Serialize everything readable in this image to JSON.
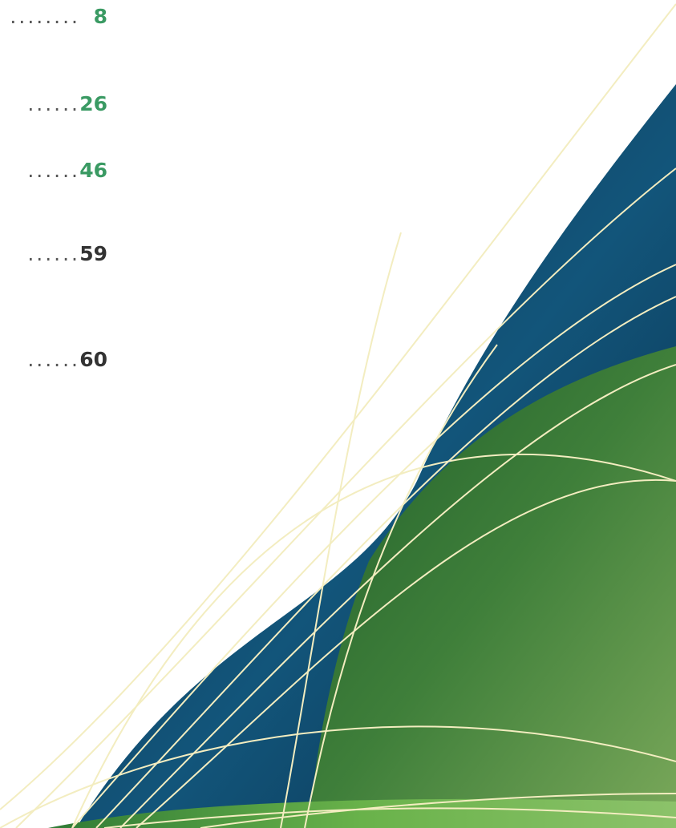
{
  "toc": {
    "entries": [
      {
        "leader": "........",
        "page": "8",
        "color": "#3a9a63"
      },
      {
        "leader": "......",
        "page": "26",
        "color": "#3a9a63"
      },
      {
        "leader": "......",
        "page": "46",
        "color": "#3a9a63"
      },
      {
        "leader": "......",
        "page": "59",
        "color": "#333333"
      },
      {
        "leader": "......",
        "page": "60",
        "color": "#333333"
      }
    ]
  },
  "colors": {
    "navy": "#0e3a5b",
    "forest_green": "#3f7f3a",
    "light_green": "#7aa85a",
    "cream_line": "#f3edc0"
  }
}
